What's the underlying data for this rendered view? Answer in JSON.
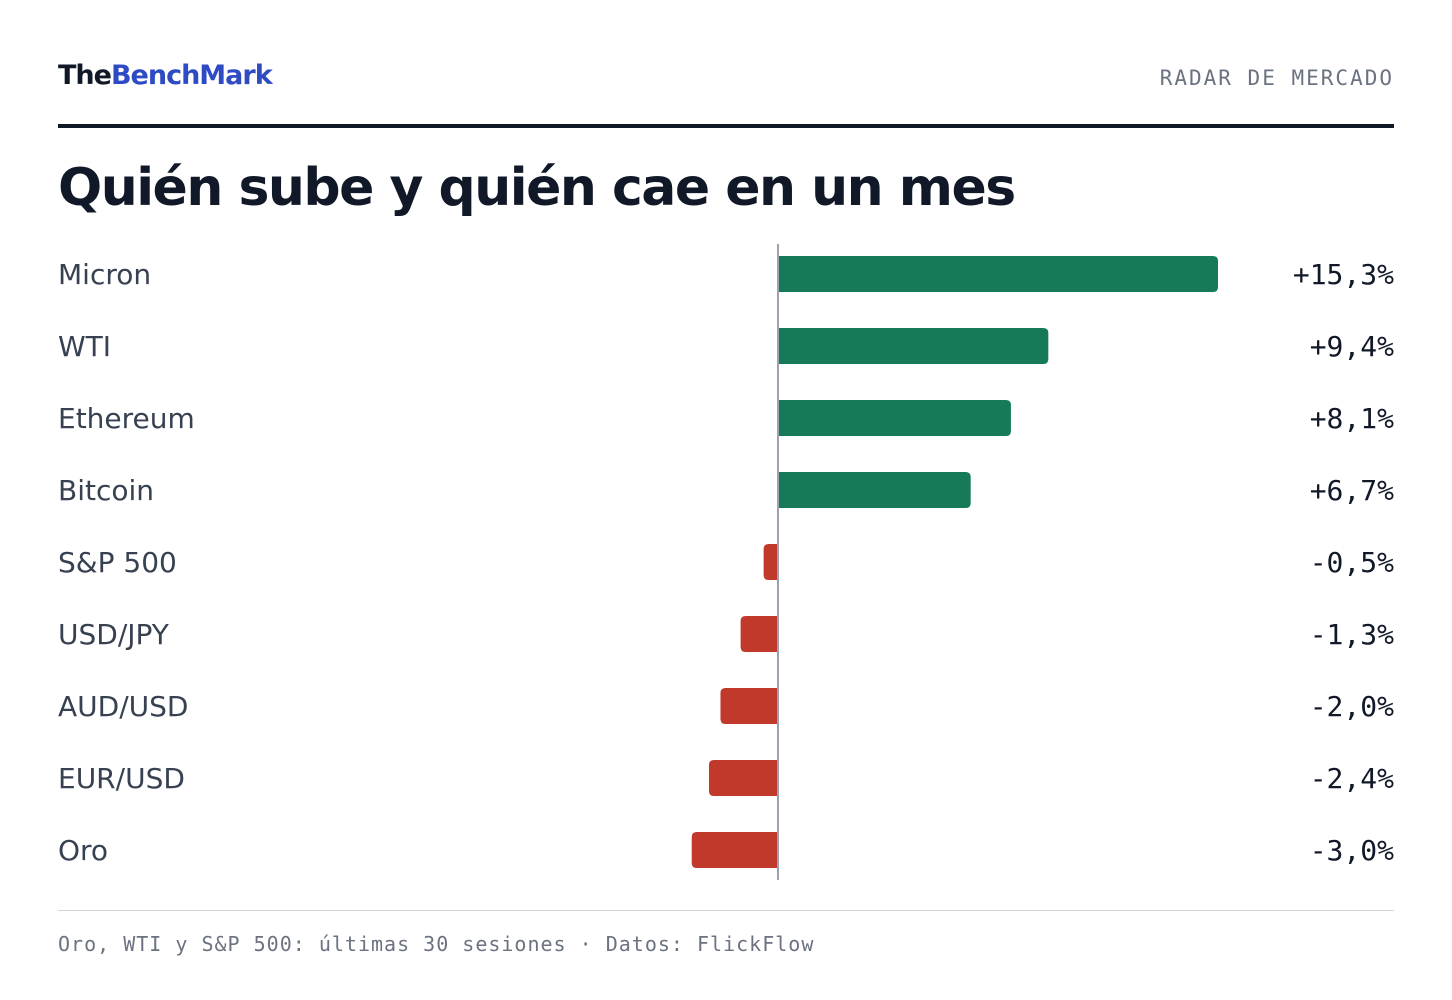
{
  "header": {
    "logo_part1": "The",
    "logo_part2": "BenchMark",
    "section_label": "RADAR DE MERCADO"
  },
  "title": "Quién sube y quién cae en un mes",
  "footer": "Oro, WTI y S&P 500: últimas 30 sesiones · Datos: FlickFlow",
  "colors": {
    "positive": "#167a58",
    "negative": "#c0392b",
    "brand_blue": "#2f4bc4",
    "ink": "#111827"
  },
  "chart_data": {
    "type": "bar",
    "orientation": "horizontal",
    "categories": [
      "Micron",
      "WTI",
      "Ethereum",
      "Bitcoin",
      "S&P 500",
      "USD/JPY",
      "AUD/USD",
      "EUR/USD",
      "Oro"
    ],
    "values": [
      15.3,
      9.4,
      8.1,
      6.7,
      -0.5,
      -1.3,
      -2.0,
      -2.4,
      -3.0
    ],
    "value_labels": [
      "+15,3%",
      "+9,4%",
      "+8,1%",
      "+6,7%",
      "-0,5%",
      "-1,3%",
      "-2,0%",
      "-2,4%",
      "-3,0%"
    ],
    "title": "Quién sube y quién cae en un mes",
    "xlabel": "",
    "ylabel": "",
    "grid": false,
    "legend": "none"
  }
}
